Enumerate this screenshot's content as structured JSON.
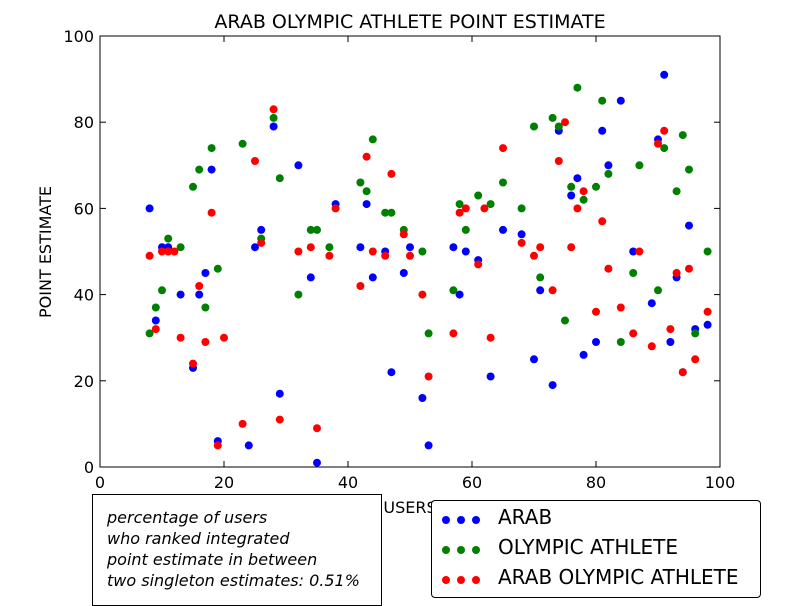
{
  "chart_data": {
    "type": "scatter",
    "title": "ARAB OLYMPIC ATHLETE POINT ESTIMATE",
    "xlabel": "USERS",
    "ylabel": "POINT ESTIMATE",
    "xlim": [
      0,
      100
    ],
    "ylim": [
      0,
      100
    ],
    "xticks": [
      "0",
      "20",
      "40",
      "60",
      "80",
      "100"
    ],
    "yticks": [
      "0",
      "20",
      "40",
      "60",
      "80",
      "100"
    ],
    "grid": false,
    "legend_position": "bottom-right outside",
    "series": [
      {
        "name": "ARAB",
        "color": "#0000ff",
        "points": [
          [
            8,
            60
          ],
          [
            9,
            34
          ],
          [
            10,
            51
          ],
          [
            11,
            51
          ],
          [
            13,
            40
          ],
          [
            15,
            23
          ],
          [
            16,
            40
          ],
          [
            17,
            45
          ],
          [
            18,
            69
          ],
          [
            19,
            6
          ],
          [
            25,
            51
          ],
          [
            26,
            55
          ],
          [
            24,
            5
          ],
          [
            28,
            79
          ],
          [
            29,
            17
          ],
          [
            32,
            70
          ],
          [
            34,
            44
          ],
          [
            35,
            1
          ],
          [
            38,
            61
          ],
          [
            42,
            51
          ],
          [
            43,
            61
          ],
          [
            44,
            44
          ],
          [
            46,
            50
          ],
          [
            47,
            22
          ],
          [
            49,
            45
          ],
          [
            50,
            51
          ],
          [
            52,
            16
          ],
          [
            53,
            5
          ],
          [
            57,
            51
          ],
          [
            58,
            40
          ],
          [
            59,
            50
          ],
          [
            61,
            48
          ],
          [
            63,
            21
          ],
          [
            65,
            55
          ],
          [
            68,
            54
          ],
          [
            70,
            25
          ],
          [
            71,
            41
          ],
          [
            73,
            19
          ],
          [
            74,
            78
          ],
          [
            76,
            63
          ],
          [
            77,
            67
          ],
          [
            78,
            26
          ],
          [
            80,
            29
          ],
          [
            81,
            78
          ],
          [
            82,
            70
          ],
          [
            84,
            85
          ],
          [
            86,
            50
          ],
          [
            89,
            38
          ],
          [
            90,
            76
          ],
          [
            91,
            91
          ],
          [
            92,
            29
          ],
          [
            93,
            44
          ],
          [
            94,
            22
          ],
          [
            95,
            56
          ],
          [
            96,
            32
          ],
          [
            98,
            33
          ]
        ]
      },
      {
        "name": "OLYMPIC ATHLETE",
        "color": "#008000",
        "points": [
          [
            8,
            31
          ],
          [
            9,
            37
          ],
          [
            10,
            41
          ],
          [
            11,
            53
          ],
          [
            13,
            51
          ],
          [
            15,
            65
          ],
          [
            16,
            69
          ],
          [
            17,
            37
          ],
          [
            18,
            74
          ],
          [
            19,
            46
          ],
          [
            23,
            75
          ],
          [
            26,
            53
          ],
          [
            28,
            81
          ],
          [
            29,
            67
          ],
          [
            32,
            40
          ],
          [
            34,
            55
          ],
          [
            35,
            55
          ],
          [
            37,
            51
          ],
          [
            42,
            66
          ],
          [
            43,
            64
          ],
          [
            44,
            76
          ],
          [
            46,
            59
          ],
          [
            47,
            59
          ],
          [
            49,
            55
          ],
          [
            52,
            50
          ],
          [
            53,
            31
          ],
          [
            57,
            41
          ],
          [
            58,
            61
          ],
          [
            59,
            55
          ],
          [
            61,
            63
          ],
          [
            63,
            61
          ],
          [
            65,
            66
          ],
          [
            68,
            60
          ],
          [
            70,
            79
          ],
          [
            71,
            44
          ],
          [
            73,
            81
          ],
          [
            74,
            79
          ],
          [
            75,
            34
          ],
          [
            76,
            65
          ],
          [
            77,
            88
          ],
          [
            78,
            62
          ],
          [
            80,
            65
          ],
          [
            81,
            85
          ],
          [
            82,
            68
          ],
          [
            84,
            29
          ],
          [
            86,
            45
          ],
          [
            87,
            70
          ],
          [
            90,
            41
          ],
          [
            91,
            74
          ],
          [
            93,
            64
          ],
          [
            94,
            77
          ],
          [
            95,
            69
          ],
          [
            96,
            31
          ],
          [
            98,
            50
          ]
        ]
      },
      {
        "name": "ARAB OLYMPIC ATHLETE",
        "color": "#ff0000",
        "points": [
          [
            8,
            49
          ],
          [
            9,
            32
          ],
          [
            10,
            50
          ],
          [
            11,
            50
          ],
          [
            12,
            50
          ],
          [
            13,
            30
          ],
          [
            15,
            24
          ],
          [
            16,
            42
          ],
          [
            17,
            29
          ],
          [
            18,
            59
          ],
          [
            19,
            5
          ],
          [
            20,
            30
          ],
          [
            23,
            10
          ],
          [
            25,
            71
          ],
          [
            26,
            52
          ],
          [
            28,
            83
          ],
          [
            29,
            11
          ],
          [
            32,
            50
          ],
          [
            34,
            51
          ],
          [
            35,
            9
          ],
          [
            37,
            49
          ],
          [
            38,
            60
          ],
          [
            42,
            42
          ],
          [
            43,
            72
          ],
          [
            44,
            50
          ],
          [
            46,
            49
          ],
          [
            47,
            68
          ],
          [
            49,
            54
          ],
          [
            50,
            49
          ],
          [
            52,
            40
          ],
          [
            53,
            21
          ],
          [
            57,
            31
          ],
          [
            58,
            59
          ],
          [
            59,
            60
          ],
          [
            61,
            47
          ],
          [
            62,
            60
          ],
          [
            63,
            30
          ],
          [
            65,
            74
          ],
          [
            68,
            52
          ],
          [
            70,
            49
          ],
          [
            71,
            51
          ],
          [
            73,
            41
          ],
          [
            74,
            71
          ],
          [
            75,
            80
          ],
          [
            76,
            51
          ],
          [
            77,
            60
          ],
          [
            78,
            64
          ],
          [
            80,
            36
          ],
          [
            81,
            57
          ],
          [
            82,
            46
          ],
          [
            84,
            37
          ],
          [
            86,
            31
          ],
          [
            87,
            50
          ],
          [
            89,
            28
          ],
          [
            90,
            75
          ],
          [
            91,
            78
          ],
          [
            92,
            32
          ],
          [
            93,
            45
          ],
          [
            94,
            22
          ],
          [
            95,
            46
          ],
          [
            96,
            25
          ],
          [
            98,
            36
          ]
        ]
      }
    ]
  },
  "annotation": {
    "lines": [
      "percentage of users",
      "who ranked integrated",
      "point estimate in between",
      "two singleton estimates: 0.51%"
    ]
  },
  "legend": {
    "items": [
      {
        "label": "ARAB",
        "color": "#0000ff"
      },
      {
        "label": "OLYMPIC ATHLETE",
        "color": "#008000"
      },
      {
        "label": "ARAB OLYMPIC ATHLETE",
        "color": "#ff0000"
      }
    ]
  }
}
